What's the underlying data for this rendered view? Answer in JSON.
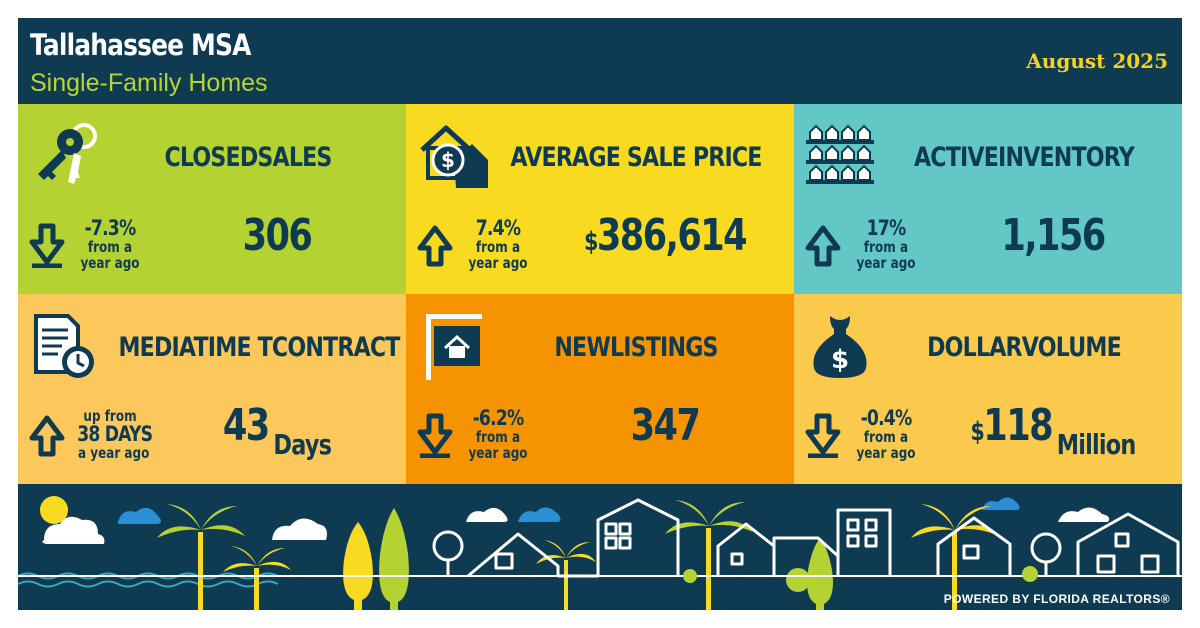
{
  "header": {
    "title": "Tallahassee MSA",
    "subtitle": "Single-Family Homes",
    "date": "August 2025"
  },
  "colors": {
    "navy": "#0e3a52",
    "lime": "#b5d233",
    "yellow": "#f8da21",
    "teal": "#63c7c6",
    "peach": "#fcc75b",
    "orange": "#f59400",
    "gold": "#fbc94b"
  },
  "tiles": [
    {
      "icon": "keys-icon",
      "title": "CLOSEDSALES",
      "direction": "down",
      "change": "-7.3%",
      "change_note": [
        "from a",
        "year ago"
      ],
      "currency": "",
      "value": "306",
      "unit": ""
    },
    {
      "icon": "house-dollar-icon",
      "title": "AVERAGE SALE PRICE",
      "direction": "up",
      "change": "7.4%",
      "change_note": [
        "from a",
        "year ago"
      ],
      "currency": "$",
      "value": "386,614",
      "unit": ""
    },
    {
      "icon": "row-houses-icon",
      "title": "ACTIVEINVENTORY",
      "direction": "up",
      "change": "17%",
      "change_note": [
        "from a",
        "year ago"
      ],
      "currency": "",
      "value": "1,156",
      "unit": ""
    },
    {
      "icon": "document-clock-icon",
      "title": "MEDIATIME TCONTRACT",
      "direction": "up",
      "change": "up from",
      "change_note": [
        "38 DAYS",
        "a year ago"
      ],
      "currency": "",
      "value": "43",
      "unit": "Days"
    },
    {
      "icon": "house-sign-icon",
      "title": "NEWLISTINGS",
      "direction": "down",
      "change": "-6.2%",
      "change_note": [
        "from a",
        "year ago"
      ],
      "currency": "",
      "value": "347",
      "unit": ""
    },
    {
      "icon": "money-bag-icon",
      "title": "DOLLARVOLUME",
      "direction": "down",
      "change": "-0.4%",
      "change_note": [
        "from a",
        "year ago"
      ],
      "currency": "$",
      "value": "118",
      "unit": "Million"
    }
  ],
  "footer": {
    "powered_by": "POWERED BY FLORIDA REALTORS®"
  }
}
